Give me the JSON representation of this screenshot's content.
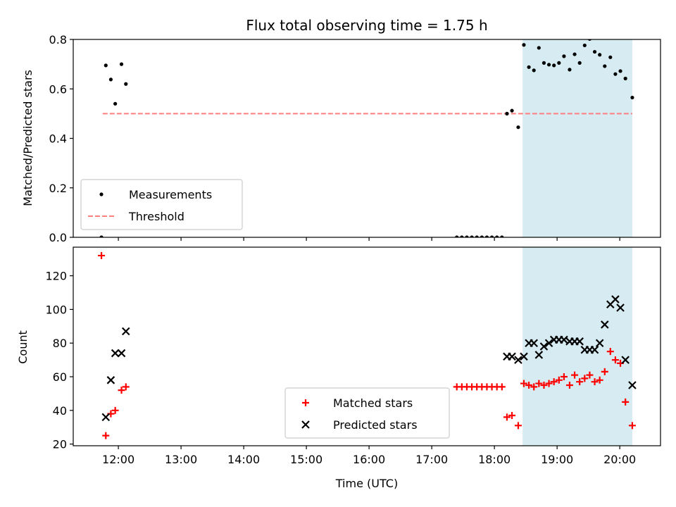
{
  "chart_data": {
    "title": "Flux total observing time = 1.75 h",
    "xlabel": "Time (UTC)",
    "x_ticks": [
      "12:00",
      "13:00",
      "14:00",
      "15:00",
      "16:00",
      "17:00",
      "18:00",
      "19:00",
      "20:00"
    ],
    "x_unit": "hours UTC",
    "xlim": [
      11.28,
      20.65
    ],
    "highlight_span": {
      "x_start": 18.45,
      "x_end": 20.2,
      "color": "#add8e6"
    },
    "panels": [
      {
        "type": "scatter",
        "ylabel": "Matched/Predicted stars",
        "ylim": [
          0,
          0.8
        ],
        "y_ticks": [
          "0.0",
          "0.2",
          "0.4",
          "0.6",
          "0.8"
        ],
        "threshold": {
          "name": "Threshold",
          "y": 0.5,
          "x_start": 11.75,
          "x_end": 20.2,
          "color": "#ff7f7f"
        },
        "legend_position": "lower-left",
        "series": [
          {
            "name": "Measurements",
            "color": "#000000",
            "marker": "dot",
            "points": [
              [
                11.73,
                0.0
              ],
              [
                11.8,
                0.695
              ],
              [
                11.88,
                0.638
              ],
              [
                11.95,
                0.54
              ],
              [
                12.05,
                0.7
              ],
              [
                12.12,
                0.62
              ],
              [
                17.4,
                0.0
              ],
              [
                17.48,
                0.0
              ],
              [
                17.56,
                0.0
              ],
              [
                17.64,
                0.0
              ],
              [
                17.72,
                0.0
              ],
              [
                17.8,
                0.0
              ],
              [
                17.88,
                0.0
              ],
              [
                17.96,
                0.0
              ],
              [
                18.04,
                0.0
              ],
              [
                18.12,
                0.0
              ],
              [
                18.2,
                0.5
              ],
              [
                18.28,
                0.512
              ],
              [
                18.38,
                0.445
              ],
              [
                18.47,
                0.778
              ],
              [
                18.55,
                0.688
              ],
              [
                18.63,
                0.675
              ],
              [
                18.71,
                0.766
              ],
              [
                18.79,
                0.705
              ],
              [
                18.87,
                0.698
              ],
              [
                18.95,
                0.695
              ],
              [
                19.03,
                0.705
              ],
              [
                19.11,
                0.732
              ],
              [
                19.2,
                0.678
              ],
              [
                19.28,
                0.74
              ],
              [
                19.36,
                0.705
              ],
              [
                19.44,
                0.776
              ],
              [
                19.52,
                0.802
              ],
              [
                19.6,
                0.75
              ],
              [
                19.68,
                0.738
              ],
              [
                19.76,
                0.692
              ],
              [
                19.85,
                0.728
              ],
              [
                19.93,
                0.66
              ],
              [
                20.01,
                0.672
              ],
              [
                20.09,
                0.642
              ],
              [
                20.2,
                0.565
              ]
            ]
          }
        ]
      },
      {
        "type": "scatter",
        "ylabel": "Count",
        "ylim": [
          19,
          137
        ],
        "y_ticks": [
          "20",
          "40",
          "60",
          "80",
          "100",
          "120"
        ],
        "legend_position": "lower-center",
        "series": [
          {
            "name": "Matched stars",
            "color": "#ff0000",
            "marker": "plus",
            "points": [
              [
                11.73,
                132
              ],
              [
                11.8,
                25
              ],
              [
                11.88,
                38
              ],
              [
                11.95,
                40
              ],
              [
                12.05,
                52
              ],
              [
                12.12,
                54
              ],
              [
                17.4,
                54
              ],
              [
                17.48,
                54
              ],
              [
                17.56,
                54
              ],
              [
                17.64,
                54
              ],
              [
                17.72,
                54
              ],
              [
                17.8,
                54
              ],
              [
                17.88,
                54
              ],
              [
                17.96,
                54
              ],
              [
                18.04,
                54
              ],
              [
                18.12,
                54
              ],
              [
                18.2,
                36
              ],
              [
                18.28,
                37
              ],
              [
                18.38,
                31
              ],
              [
                18.47,
                56
              ],
              [
                18.55,
                55
              ],
              [
                18.63,
                54
              ],
              [
                18.71,
                56
              ],
              [
                18.79,
                55
              ],
              [
                18.87,
                56
              ],
              [
                18.95,
                57
              ],
              [
                19.03,
                58
              ],
              [
                19.11,
                60
              ],
              [
                19.2,
                55
              ],
              [
                19.28,
                61
              ],
              [
                19.36,
                57
              ],
              [
                19.44,
                59
              ],
              [
                19.52,
                61
              ],
              [
                19.6,
                57
              ],
              [
                19.68,
                58
              ],
              [
                19.76,
                63
              ],
              [
                19.85,
                75
              ],
              [
                19.93,
                70
              ],
              [
                20.01,
                68
              ],
              [
                20.09,
                45
              ],
              [
                20.2,
                31
              ]
            ]
          },
          {
            "name": "Predicted stars",
            "color": "#000000",
            "marker": "x",
            "points": [
              [
                11.8,
                36
              ],
              [
                11.88,
                58
              ],
              [
                11.95,
                74
              ],
              [
                12.05,
                74
              ],
              [
                12.12,
                87
              ],
              [
                18.2,
                72
              ],
              [
                18.28,
                72
              ],
              [
                18.38,
                70
              ],
              [
                18.47,
                72
              ],
              [
                18.55,
                80
              ],
              [
                18.63,
                80
              ],
              [
                18.71,
                73
              ],
              [
                18.79,
                78
              ],
              [
                18.87,
                80
              ],
              [
                18.95,
                82
              ],
              [
                19.03,
                82
              ],
              [
                19.11,
                82
              ],
              [
                19.2,
                81
              ],
              [
                19.28,
                81
              ],
              [
                19.36,
                81
              ],
              [
                19.44,
                76
              ],
              [
                19.52,
                76
              ],
              [
                19.6,
                76
              ],
              [
                19.68,
                80
              ],
              [
                19.76,
                91
              ],
              [
                19.85,
                103
              ],
              [
                19.93,
                106
              ],
              [
                20.01,
                101
              ],
              [
                20.09,
                70
              ],
              [
                20.2,
                55
              ]
            ]
          }
        ]
      }
    ]
  }
}
